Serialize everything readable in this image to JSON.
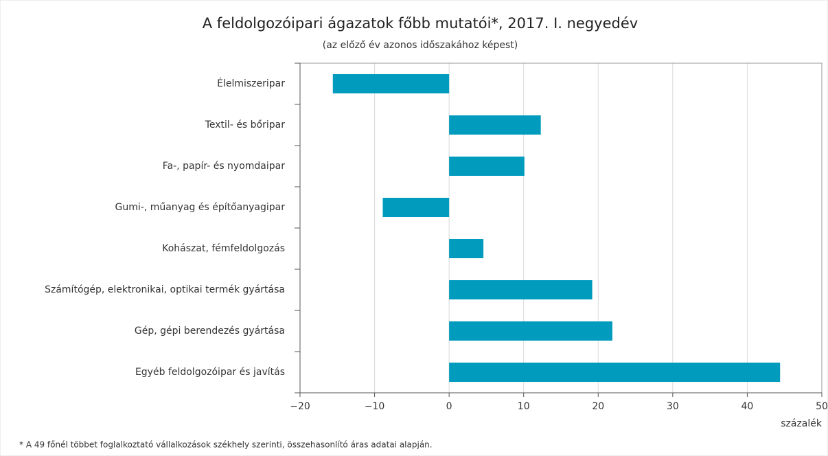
{
  "chart_data": {
    "type": "barh",
    "title": "A feldolgozóipari ágazatok főbb mutatói*, 2017. I. negyedév",
    "subtitle": "(az előző év azonos időszakához képest)",
    "x_label": "százalék",
    "footnote": "* A 49 főnél többet foglalkoztató vállalkozások székhely szerinti, összehasonlító áras adatai alapján.",
    "categories": [
      "Élelmiszeripar",
      "Textil- és bőripar",
      "Fa-, papír- és nyomdaipar",
      "Gumi-, műanyag és építőanyagipar",
      "Kohászat, fémfeldolgozás",
      "Számítógép, elektronikai, optikai termék gyártása",
      "Gép, gépi berendezés gyártása",
      "Egyéb feldolgozóipar és javítás"
    ],
    "values": [
      -15.6,
      12.3,
      10.1,
      -8.9,
      4.6,
      19.2,
      21.9,
      44.4
    ],
    "color": "#009bbd",
    "xlim": [
      -20,
      50
    ],
    "xticks": [
      {
        "value": -20,
        "label": "−20"
      },
      {
        "value": -10,
        "label": "−10"
      },
      0,
      10,
      20,
      30,
      40,
      50
    ],
    "grid": true
  }
}
